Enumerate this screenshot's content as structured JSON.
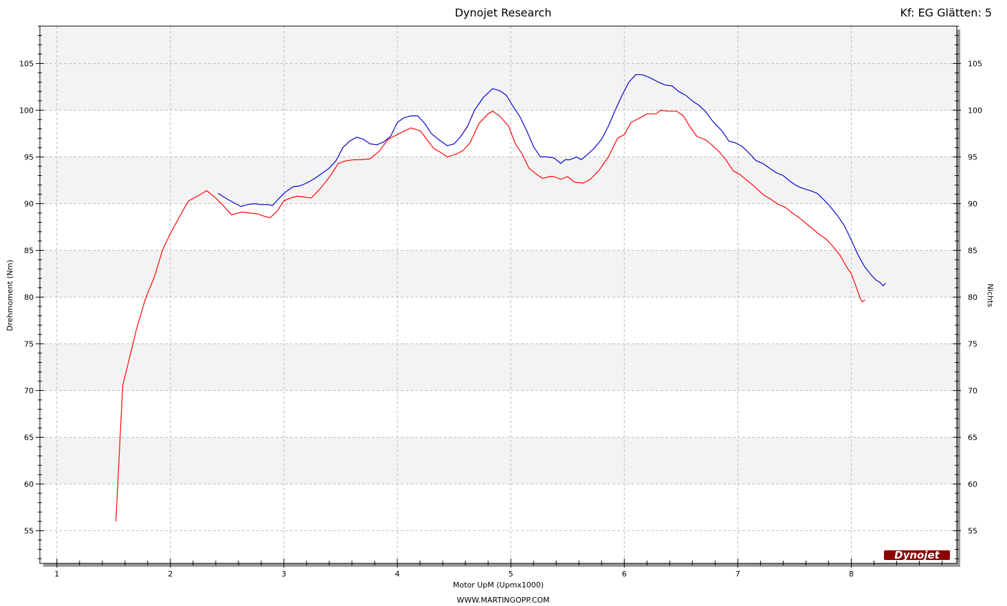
{
  "chart_data": {
    "type": "line",
    "title": "Dynojet Research",
    "corner_label": "Kf: EG Glätten: 5",
    "xlabel": "Motor UpM (Upmx1000)",
    "ylabel": "Drehmoment (Nm)",
    "ylabel_right": "Nichts",
    "footer": "WWW.MARTINGOPP.COM",
    "brand": "Dynojet",
    "xlim": [
      0.85,
      8.93
    ],
    "ylim": [
      51.5,
      109
    ],
    "xticks": [
      1,
      2,
      3,
      4,
      5,
      6,
      7,
      8
    ],
    "yticks": [
      55,
      60,
      65,
      70,
      75,
      80,
      85,
      90,
      95,
      100,
      105
    ],
    "grid": true,
    "series": [
      {
        "color": "#ff0000",
        "points": [
          [
            1.52,
            56.0
          ],
          [
            1.58,
            70.5
          ],
          [
            1.7,
            76.5
          ],
          [
            1.78,
            79.8
          ],
          [
            1.86,
            82.2
          ],
          [
            1.93,
            85.0
          ],
          [
            2.0,
            86.8
          ],
          [
            2.08,
            88.6
          ],
          [
            2.16,
            90.3
          ],
          [
            2.24,
            90.8
          ],
          [
            2.32,
            91.4
          ],
          [
            2.4,
            90.6
          ],
          [
            2.48,
            89.6
          ],
          [
            2.54,
            88.8
          ],
          [
            2.63,
            89.1
          ],
          [
            2.7,
            89.0
          ],
          [
            2.77,
            88.9
          ],
          [
            2.84,
            88.6
          ],
          [
            2.88,
            88.5
          ],
          [
            2.94,
            89.2
          ],
          [
            3.0,
            90.3
          ],
          [
            3.06,
            90.6
          ],
          [
            3.12,
            90.8
          ],
          [
            3.18,
            90.7
          ],
          [
            3.24,
            90.6
          ],
          [
            3.32,
            91.6
          ],
          [
            3.4,
            92.8
          ],
          [
            3.48,
            94.3
          ],
          [
            3.55,
            94.6
          ],
          [
            3.62,
            94.7
          ],
          [
            3.68,
            94.7
          ],
          [
            3.76,
            94.8
          ],
          [
            3.84,
            95.6
          ],
          [
            3.92,
            96.9
          ],
          [
            4.0,
            97.4
          ],
          [
            4.08,
            97.9
          ],
          [
            4.12,
            98.1
          ],
          [
            4.2,
            97.8
          ],
          [
            4.26,
            96.9
          ],
          [
            4.32,
            95.9
          ],
          [
            4.38,
            95.5
          ],
          [
            4.44,
            95.0
          ],
          [
            4.52,
            95.3
          ],
          [
            4.58,
            95.7
          ],
          [
            4.64,
            96.5
          ],
          [
            4.72,
            98.6
          ],
          [
            4.8,
            99.6
          ],
          [
            4.84,
            99.9
          ],
          [
            4.9,
            99.4
          ],
          [
            4.98,
            98.3
          ],
          [
            5.04,
            96.4
          ],
          [
            5.1,
            95.3
          ],
          [
            5.16,
            93.8
          ],
          [
            5.22,
            93.2
          ],
          [
            5.28,
            92.7
          ],
          [
            5.34,
            92.9
          ],
          [
            5.38,
            92.9
          ],
          [
            5.44,
            92.6
          ],
          [
            5.5,
            92.9
          ],
          [
            5.56,
            92.3
          ],
          [
            5.64,
            92.2
          ],
          [
            5.7,
            92.6
          ],
          [
            5.78,
            93.6
          ],
          [
            5.86,
            95.0
          ],
          [
            5.94,
            97.0
          ],
          [
            6.0,
            97.4
          ],
          [
            6.06,
            98.7
          ],
          [
            6.14,
            99.2
          ],
          [
            6.2,
            99.6
          ],
          [
            6.28,
            99.6
          ],
          [
            6.32,
            100.0
          ],
          [
            6.38,
            99.9
          ],
          [
            6.46,
            99.9
          ],
          [
            6.52,
            99.4
          ],
          [
            6.58,
            98.2
          ],
          [
            6.64,
            97.2
          ],
          [
            6.72,
            96.8
          ],
          [
            6.78,
            96.2
          ],
          [
            6.84,
            95.5
          ],
          [
            6.9,
            94.6
          ],
          [
            6.96,
            93.5
          ],
          [
            7.02,
            93.1
          ],
          [
            7.1,
            92.3
          ],
          [
            7.16,
            91.7
          ],
          [
            7.22,
            91.0
          ],
          [
            7.3,
            90.4
          ],
          [
            7.36,
            89.9
          ],
          [
            7.42,
            89.6
          ],
          [
            7.48,
            89.0
          ],
          [
            7.54,
            88.5
          ],
          [
            7.6,
            87.9
          ],
          [
            7.66,
            87.3
          ],
          [
            7.72,
            86.7
          ],
          [
            7.78,
            86.2
          ],
          [
            7.84,
            85.4
          ],
          [
            7.9,
            84.5
          ],
          [
            7.96,
            83.2
          ],
          [
            8.0,
            82.5
          ],
          [
            8.04,
            81.2
          ],
          [
            8.08,
            79.8
          ],
          [
            8.1,
            79.5
          ],
          [
            8.12,
            79.7
          ]
        ]
      },
      {
        "color": "#0000cc",
        "points": [
          [
            2.42,
            91.1
          ],
          [
            2.5,
            90.5
          ],
          [
            2.56,
            90.1
          ],
          [
            2.62,
            89.7
          ],
          [
            2.68,
            89.9
          ],
          [
            2.74,
            90.0
          ],
          [
            2.8,
            89.9
          ],
          [
            2.86,
            89.9
          ],
          [
            2.9,
            89.8
          ],
          [
            2.96,
            90.6
          ],
          [
            3.02,
            91.3
          ],
          [
            3.08,
            91.8
          ],
          [
            3.14,
            91.9
          ],
          [
            3.2,
            92.2
          ],
          [
            3.26,
            92.6
          ],
          [
            3.32,
            93.1
          ],
          [
            3.4,
            93.8
          ],
          [
            3.46,
            94.6
          ],
          [
            3.52,
            96.0
          ],
          [
            3.58,
            96.7
          ],
          [
            3.64,
            97.1
          ],
          [
            3.7,
            96.9
          ],
          [
            3.76,
            96.4
          ],
          [
            3.82,
            96.3
          ],
          [
            3.88,
            96.6
          ],
          [
            3.94,
            97.2
          ],
          [
            4.0,
            98.7
          ],
          [
            4.06,
            99.2
          ],
          [
            4.12,
            99.4
          ],
          [
            4.18,
            99.4
          ],
          [
            4.24,
            98.6
          ],
          [
            4.3,
            97.5
          ],
          [
            4.36,
            96.9
          ],
          [
            4.44,
            96.2
          ],
          [
            4.5,
            96.4
          ],
          [
            4.56,
            97.2
          ],
          [
            4.62,
            98.3
          ],
          [
            4.68,
            100.0
          ],
          [
            4.76,
            101.4
          ],
          [
            4.84,
            102.3
          ],
          [
            4.9,
            102.1
          ],
          [
            4.96,
            101.6
          ],
          [
            5.02,
            100.4
          ],
          [
            5.08,
            99.3
          ],
          [
            5.14,
            97.8
          ],
          [
            5.2,
            96.1
          ],
          [
            5.26,
            95.0
          ],
          [
            5.32,
            95.0
          ],
          [
            5.38,
            94.9
          ],
          [
            5.44,
            94.3
          ],
          [
            5.48,
            94.7
          ],
          [
            5.52,
            94.7
          ],
          [
            5.58,
            95.0
          ],
          [
            5.62,
            94.7
          ],
          [
            5.68,
            95.3
          ],
          [
            5.74,
            96.0
          ],
          [
            5.8,
            96.9
          ],
          [
            5.86,
            98.3
          ],
          [
            5.92,
            100.0
          ],
          [
            5.98,
            101.6
          ],
          [
            6.04,
            103.0
          ],
          [
            6.1,
            103.8
          ],
          [
            6.16,
            103.8
          ],
          [
            6.24,
            103.4
          ],
          [
            6.3,
            103.0
          ],
          [
            6.36,
            102.7
          ],
          [
            6.42,
            102.6
          ],
          [
            6.48,
            102.0
          ],
          [
            6.54,
            101.6
          ],
          [
            6.6,
            101.0
          ],
          [
            6.66,
            100.5
          ],
          [
            6.72,
            99.8
          ],
          [
            6.78,
            98.8
          ],
          [
            6.86,
            97.8
          ],
          [
            6.92,
            96.7
          ],
          [
            6.98,
            96.5
          ],
          [
            7.04,
            96.1
          ],
          [
            7.1,
            95.4
          ],
          [
            7.16,
            94.6
          ],
          [
            7.22,
            94.3
          ],
          [
            7.28,
            93.8
          ],
          [
            7.34,
            93.3
          ],
          [
            7.4,
            93.0
          ],
          [
            7.46,
            92.4
          ],
          [
            7.52,
            91.9
          ],
          [
            7.58,
            91.6
          ],
          [
            7.64,
            91.4
          ],
          [
            7.7,
            91.1
          ],
          [
            7.76,
            90.4
          ],
          [
            7.82,
            89.6
          ],
          [
            7.88,
            88.7
          ],
          [
            7.94,
            87.6
          ],
          [
            8.0,
            86.1
          ],
          [
            8.06,
            84.5
          ],
          [
            8.12,
            83.2
          ],
          [
            8.18,
            82.3
          ],
          [
            8.22,
            81.8
          ],
          [
            8.26,
            81.5
          ],
          [
            8.28,
            81.2
          ],
          [
            8.3,
            81.5
          ]
        ]
      }
    ]
  }
}
